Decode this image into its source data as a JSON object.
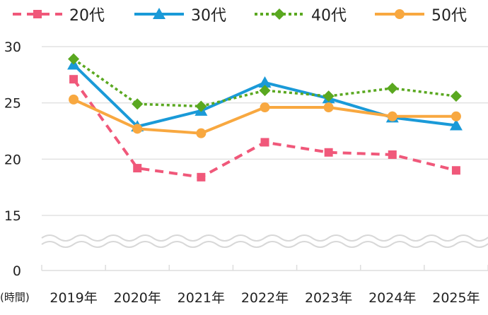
{
  "chart_data": {
    "type": "line",
    "categories": [
      "2019年",
      "2020年",
      "2021年",
      "2022年",
      "2023年",
      "2024年",
      "2025年"
    ],
    "xlabel": "(時間)",
    "ylabel": "",
    "yticks": [
      "0",
      "15",
      "20",
      "25",
      "30"
    ],
    "ylim": [
      15,
      30
    ],
    "axis_break": "between 0 and 15",
    "grid": true,
    "legend": "top",
    "series": [
      {
        "name": "20代",
        "color": "#f0587a",
        "style": "dashed",
        "marker": "square",
        "values": [
          27.1,
          19.2,
          18.4,
          21.5,
          20.6,
          20.4,
          19.0
        ]
      },
      {
        "name": "30代",
        "color": "#1a9ad8",
        "style": "solid",
        "marker": "triangle",
        "values": [
          28.4,
          22.9,
          24.3,
          26.8,
          25.4,
          23.7,
          23.0
        ]
      },
      {
        "name": "40代",
        "color": "#5aa820",
        "style": "dotted",
        "marker": "diamond",
        "values": [
          28.9,
          24.9,
          24.7,
          26.1,
          25.6,
          26.3,
          25.6
        ]
      },
      {
        "name": "50代",
        "color": "#f8a840",
        "style": "solid",
        "marker": "circle",
        "values": [
          25.3,
          22.7,
          22.3,
          24.6,
          24.6,
          23.8,
          23.8
        ]
      }
    ]
  }
}
